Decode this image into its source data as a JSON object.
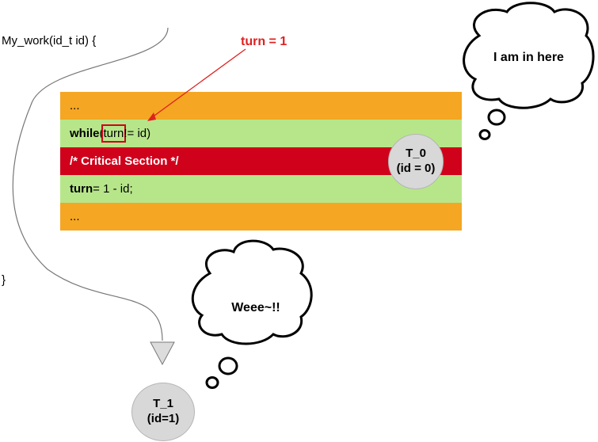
{
  "code": {
    "header": "My_work(id_t id) {",
    "close": "}",
    "lines": [
      {
        "text": "..."
      },
      {
        "keyword": "while",
        "pre": " (",
        "var": "turn",
        "post": " != id)"
      },
      {
        "text": "/* Critical Section */"
      },
      {
        "keyword": "turn",
        "post": " = 1 - id;"
      },
      {
        "text": "..."
      }
    ]
  },
  "annotation": "turn = 1",
  "threads": [
    {
      "name": "T_0",
      "detail": "(id = 0)"
    },
    {
      "name": "T_1",
      "detail": "(id=1)"
    }
  ],
  "thoughts": [
    {
      "text": "I am in here"
    },
    {
      "text": "Weee~!!"
    }
  ],
  "colors": {
    "orange": "#f5a623",
    "green": "#b7e68a",
    "red": "#d0021b",
    "annotation_red": "#e02020",
    "thread_gray": "#d8d8d8"
  }
}
